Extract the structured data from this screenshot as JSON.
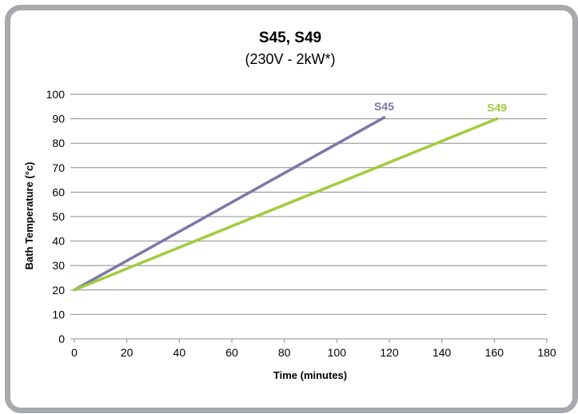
{
  "chart_data": {
    "type": "line",
    "title": "S45, S49",
    "subtitle": "(230V - 2kW*)",
    "xlabel": "Time (minutes)",
    "ylabel": "Bath Temperature (°c)",
    "xlim": [
      0,
      180
    ],
    "ylim": [
      0,
      100
    ],
    "x_ticks": [
      0,
      20,
      40,
      60,
      80,
      100,
      120,
      140,
      160,
      180
    ],
    "y_ticks": [
      0,
      10,
      20,
      30,
      40,
      50,
      60,
      70,
      80,
      90,
      100
    ],
    "grid": "horizontal",
    "legend": "inline labels at line ends",
    "series": [
      {
        "name": "S45",
        "color": "#7b78a8",
        "x": [
          0,
          118
        ],
        "y": [
          20,
          90.5
        ]
      },
      {
        "name": "S49",
        "color": "#9fcc3b",
        "x": [
          0,
          161
        ],
        "y": [
          20,
          90
        ]
      }
    ]
  }
}
